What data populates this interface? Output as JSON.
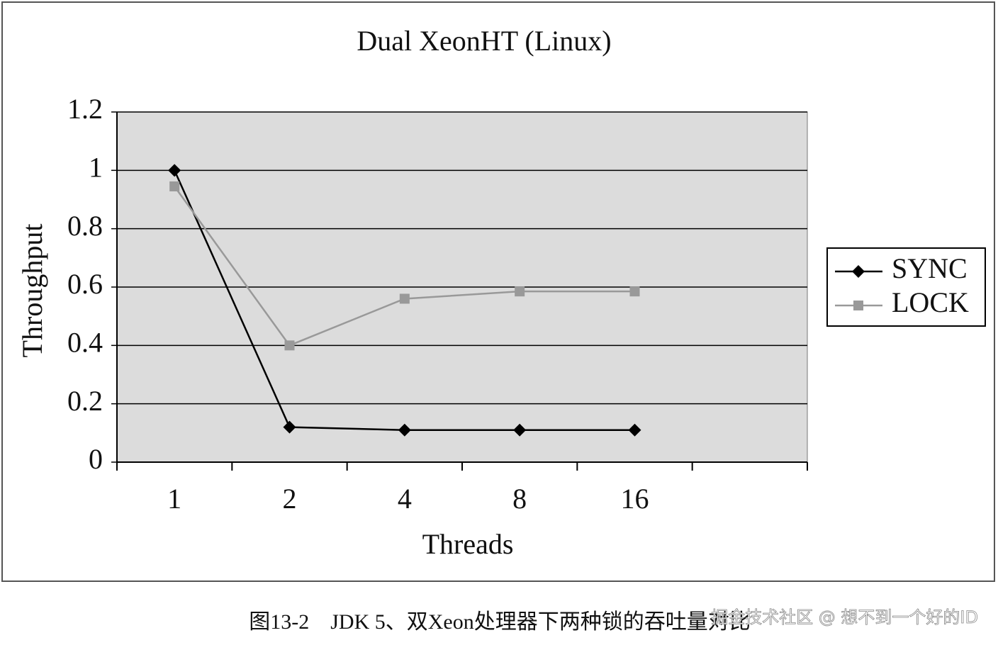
{
  "chart_data": {
    "type": "line",
    "title": "Dual XeonHT (Linux)",
    "x_label": "Threads",
    "y_label": "Throughput",
    "categories": [
      "1",
      "2",
      "4",
      "8",
      "16",
      null
    ],
    "series": [
      {
        "name": "SYNC",
        "color": "#000000",
        "marker": "diamond",
        "values": [
          1,
          0.12,
          0.11,
          0.11,
          0.11,
          null
        ]
      },
      {
        "name": "LOCK",
        "color": "#999999",
        "marker": "square",
        "values": [
          0.945,
          0.4,
          0.56,
          0.585,
          0.585,
          null
        ]
      }
    ],
    "ylim": [
      0,
      1.2
    ],
    "yticks": [
      0,
      0.2,
      0.4,
      0.6,
      0.8,
      1,
      1.2
    ],
    "grid": true,
    "legend": "right",
    "plot_background": "#dcdcdc"
  },
  "caption": "图13-2　JDK 5、双Xeon处理器下两种锁的吞吐量对比",
  "watermark": "掘金技术社区 @ 想不到一个好的ID"
}
